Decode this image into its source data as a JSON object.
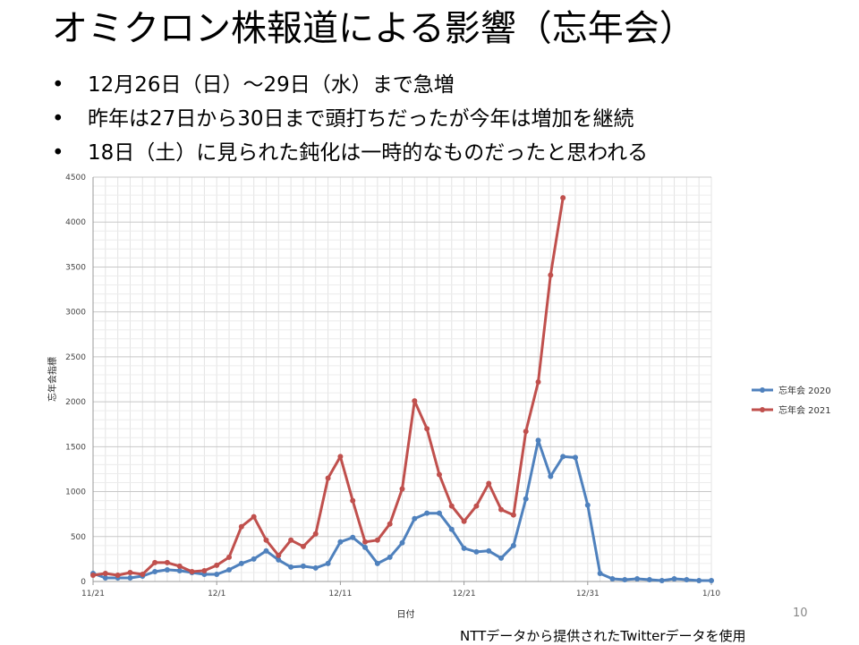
{
  "slide": {
    "title": "オミクロン株報道による影響（忘年会）",
    "bullets": [
      "12月26日（日）～29日（水）まで急増",
      "昨年は27日から30日まで頭打ちだったが今年は増加を継続",
      "18日（土）に見られた鈍化は一時的なものだったと思われる"
    ],
    "bullet_symbol": "•",
    "page_number": "10",
    "source_note": "NTTデータから提供されたTwitterデータを使用"
  },
  "chart_data": {
    "type": "line",
    "xlabel": "日付",
    "ylabel": "忘年会指標",
    "ylim": [
      0,
      4500
    ],
    "yticks": [
      0,
      500,
      1000,
      1500,
      2000,
      2500,
      3000,
      3500,
      4000,
      4500
    ],
    "xtick_labels": [
      "11/21",
      "12/1",
      "12/11",
      "12/21",
      "12/31",
      "1/10"
    ],
    "xtick_day_index": [
      0,
      10,
      20,
      30,
      40,
      50
    ],
    "grid": true,
    "legend_position": "right",
    "series": [
      {
        "name": "忘年会 2020",
        "color": "#4F81BD",
        "values": [
          90,
          40,
          40,
          40,
          60,
          110,
          130,
          120,
          100,
          80,
          80,
          130,
          200,
          250,
          340,
          240,
          160,
          170,
          150,
          200,
          440,
          490,
          380,
          200,
          270,
          430,
          700,
          760,
          760,
          580,
          370,
          330,
          340,
          260,
          400,
          920,
          1570,
          1170,
          1390,
          1380,
          850,
          90,
          30,
          20,
          30,
          20,
          10,
          30,
          20,
          10,
          10
        ]
      },
      {
        "name": "忘年会 2021",
        "color": "#C0504D",
        "values": [
          70,
          90,
          70,
          100,
          80,
          210,
          210,
          170,
          110,
          120,
          180,
          270,
          610,
          720,
          460,
          290,
          460,
          390,
          530,
          1150,
          1390,
          900,
          440,
          460,
          640,
          1030,
          2010,
          1700,
          1190,
          840,
          670,
          840,
          1090,
          800,
          740,
          1670,
          2220,
          3410,
          4270
        ]
      }
    ]
  }
}
